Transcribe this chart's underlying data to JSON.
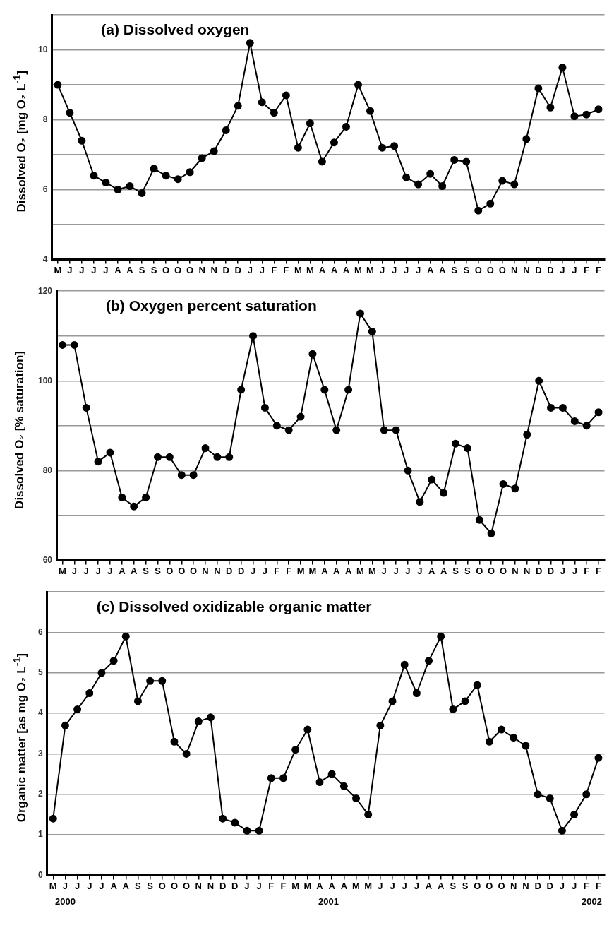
{
  "chart_data": [
    {
      "type": "line",
      "title": "(a) Dissolved oxygen",
      "ylabel": "Dissolved O₂ [mg O₂ L$^{-1}$]",
      "categories": [
        "M",
        "J",
        "J",
        "J",
        "J",
        "A",
        "A",
        "S",
        "S",
        "O",
        "O",
        "O",
        "N",
        "N",
        "D",
        "D",
        "J",
        "J",
        "F",
        "F",
        "M",
        "M",
        "A",
        "A",
        "A",
        "M",
        "M",
        "J",
        "J",
        "J",
        "J",
        "A",
        "A",
        "S",
        "S",
        "O",
        "O",
        "O",
        "N",
        "N",
        "D",
        "D",
        "J",
        "J",
        "F",
        "F"
      ],
      "series": [
        {
          "color": "#000000",
          "values": [
            9.0,
            8.2,
            7.4,
            6.4,
            6.2,
            6.0,
            6.1,
            5.9,
            6.6,
            6.4,
            6.3,
            6.5,
            6.9,
            7.1,
            7.7,
            8.4,
            10.2,
            8.5,
            8.2,
            8.7,
            7.2,
            7.9,
            6.8,
            7.35,
            7.8,
            9.0,
            8.25,
            7.2,
            7.25,
            6.35,
            6.15,
            6.45,
            6.1,
            6.85,
            6.8,
            5.4,
            5.6,
            6.25,
            6.15,
            7.45,
            8.9,
            8.35,
            9.5,
            8.1,
            8.15,
            8.3
          ]
        }
      ],
      "ylim": [
        4,
        11
      ],
      "yticks": [
        4,
        {
          "value": 5,
          "label": null
        },
        6,
        {
          "value": 7,
          "label": null
        },
        8,
        {
          "value": 9,
          "label": null
        },
        10,
        {
          "value": 11,
          "label": null
        }
      ],
      "grid": "y",
      "marker": "circle",
      "line_style": "solid"
    },
    {
      "type": "line",
      "title": "(b) Oxygen percent saturation",
      "ylabel": "Dissolved O₂  [% saturation]",
      "categories": [
        "M",
        "J",
        "J",
        "J",
        "J",
        "A",
        "A",
        "S",
        "S",
        "O",
        "O",
        "O",
        "N",
        "N",
        "D",
        "D",
        "J",
        "J",
        "F",
        "F",
        "M",
        "M",
        "A",
        "A",
        "A",
        "M",
        "M",
        "J",
        "J",
        "J",
        "J",
        "A",
        "A",
        "S",
        "S",
        "O",
        "O",
        "O",
        "N",
        "N",
        "D",
        "D",
        "J",
        "J",
        "F",
        "F"
      ],
      "series": [
        {
          "color": "#000000",
          "values": [
            108,
            108,
            94,
            82,
            84,
            74,
            72,
            74,
            83,
            83,
            79,
            79,
            85,
            83,
            83,
            98,
            110,
            94,
            90,
            89,
            92,
            106,
            98,
            89,
            98,
            115,
            111,
            89,
            89,
            80,
            73,
            78,
            75,
            86,
            85,
            69,
            66,
            77,
            76,
            88,
            100,
            94,
            94,
            91,
            90,
            93
          ]
        }
      ],
      "ylim": [
        60,
        120
      ],
      "yticks": [
        60,
        {
          "value": 70,
          "label": null
        },
        80,
        {
          "value": 90,
          "label": null
        },
        100,
        {
          "value": 110,
          "label": null
        },
        120
      ],
      "grid": "y",
      "marker": "circle",
      "line_style": "solid"
    },
    {
      "type": "line",
      "title": "(c) Dissolved oxidizable organic matter",
      "ylabel": "Organic matter [as mg O₂ L$^{-1}$]",
      "categories": [
        "M",
        "J",
        "J",
        "J",
        "J",
        "A",
        "A",
        "S",
        "S",
        "O",
        "O",
        "O",
        "N",
        "N",
        "D",
        "D",
        "J",
        "J",
        "F",
        "F",
        "M",
        "M",
        "A",
        "A",
        "A",
        "M",
        "M",
        "J",
        "J",
        "J",
        "J",
        "A",
        "A",
        "S",
        "S",
        "O",
        "O",
        "O",
        "N",
        "N",
        "D",
        "D",
        "J",
        "J",
        "F",
        "F"
      ],
      "series": [
        {
          "color": "#000000",
          "values": [
            1.4,
            3.7,
            4.1,
            4.5,
            5.0,
            5.3,
            5.9,
            4.3,
            4.8,
            4.8,
            3.3,
            3.0,
            3.8,
            3.9,
            1.4,
            1.3,
            1.1,
            1.1,
            2.4,
            2.4,
            3.1,
            3.6,
            2.3,
            2.5,
            2.2,
            1.9,
            1.5,
            3.7,
            4.3,
            5.2,
            4.5,
            5.3,
            5.9,
            4.1,
            4.3,
            4.7,
            3.3,
            3.6,
            3.4,
            3.2,
            2.0,
            1.9,
            1.1,
            1.5,
            2.0,
            2.9
          ]
        }
      ],
      "ylim": [
        0,
        7
      ],
      "yticks": [
        0,
        1,
        2,
        3,
        4,
        5,
        6,
        {
          "value": 7,
          "label": null
        }
      ],
      "grid": "y",
      "marker": "circle",
      "line_style": "solid",
      "annotations": [
        "2000",
        "2001",
        "2002"
      ]
    }
  ]
}
